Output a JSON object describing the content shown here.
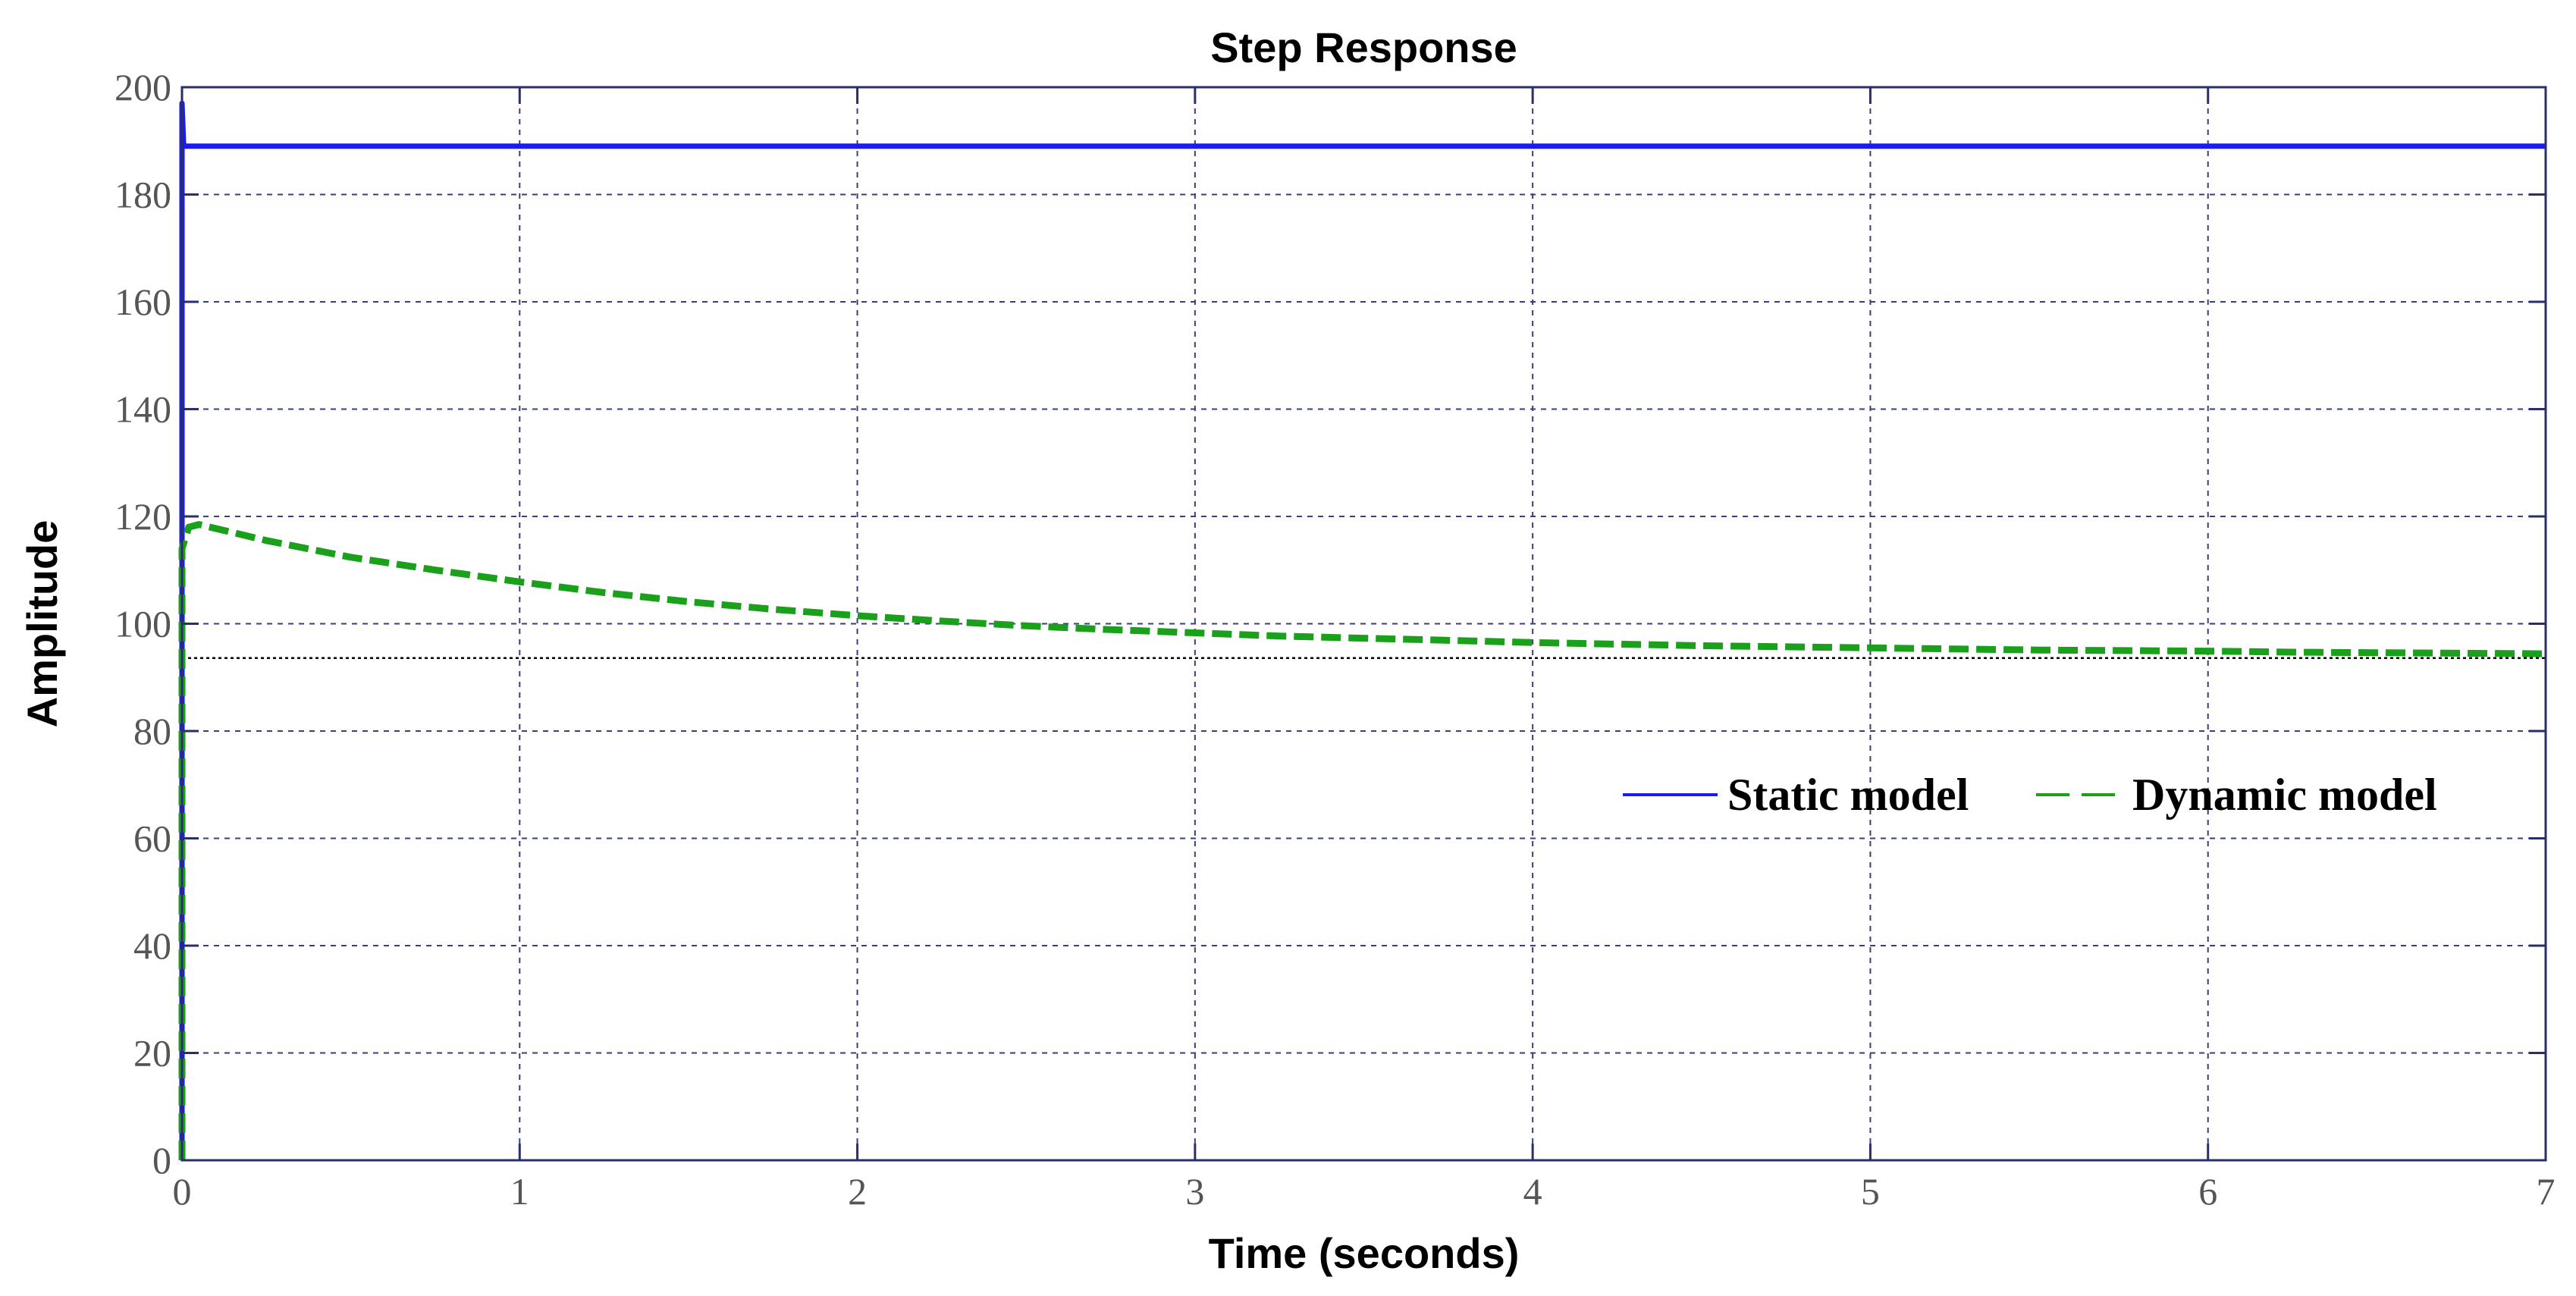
{
  "chart_data": {
    "type": "line",
    "title": "Step Response",
    "xlabel": "Time (seconds)",
    "ylabel": "Amplitude",
    "xlim": [
      0,
      7
    ],
    "ylim": [
      0,
      200
    ],
    "xticks": [
      "0",
      "1",
      "2",
      "3",
      "4",
      "5",
      "6",
      "7"
    ],
    "yticks": [
      "0",
      "20",
      "40",
      "60",
      "80",
      "100",
      "120",
      "140",
      "160",
      "180",
      "200"
    ],
    "grid": true,
    "legend_position": "right",
    "series": [
      {
        "name": "Static model",
        "style": "solid",
        "color": "#1a1aff",
        "x": [
          0,
          0,
          0.005,
          0.01,
          7
        ],
        "y": [
          0,
          197,
          189,
          189,
          189
        ]
      },
      {
        "name": "Dynamic model",
        "style": "dashed",
        "color": "#1aa01a",
        "x": [
          0,
          0,
          0.02,
          0.05,
          0.25,
          0.5,
          0.75,
          1.0,
          1.25,
          1.5,
          1.75,
          2.0,
          2.25,
          2.5,
          2.75,
          3.0,
          3.25,
          3.5,
          3.75,
          4.0,
          4.25,
          4.5,
          4.75,
          5.0,
          5.25,
          5.5,
          5.75,
          6.0,
          6.25,
          6.5,
          6.75,
          7.0
        ],
        "y": [
          0,
          114,
          118,
          118.5,
          115.5,
          112.4,
          110.0,
          107.8,
          105.8,
          104.1,
          102.7,
          101.5,
          100.5,
          99.6,
          98.9,
          98.3,
          97.7,
          97.3,
          96.9,
          96.5,
          96.2,
          95.9,
          95.7,
          95.5,
          95.3,
          95.1,
          95.0,
          94.9,
          94.7,
          94.6,
          94.5,
          94.4
        ]
      }
    ],
    "reference_line": {
      "style": "dotted",
      "color": "#000000",
      "y": 93.6
    }
  }
}
